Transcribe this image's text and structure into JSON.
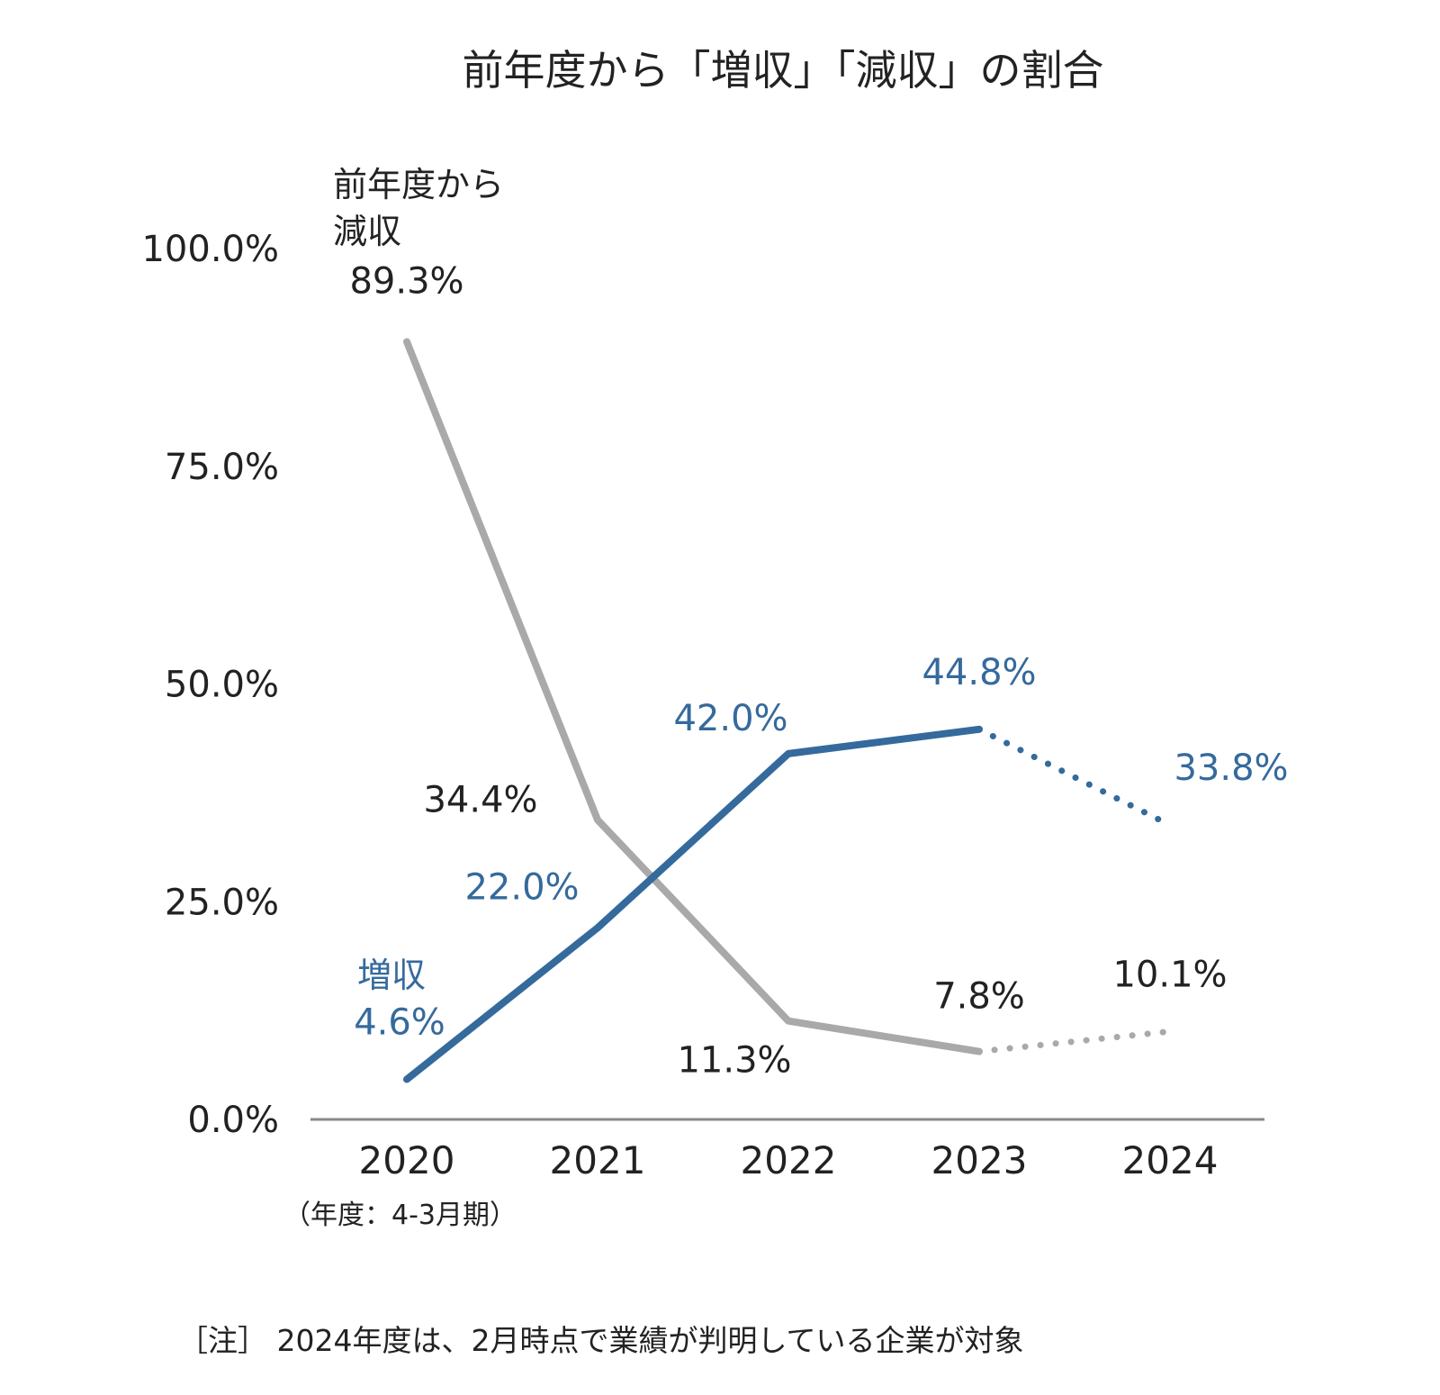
{
  "colors": {
    "increase": "#356a9c",
    "decrease": "#a9a9a9",
    "axis": "#888888",
    "text": "#222222"
  },
  "chart_data": {
    "type": "line",
    "title": "前年度から「増収」「減収」の割合",
    "x_label": "（年度：4-3月期）",
    "categories": [
      "2020",
      "2021",
      "2022",
      "2023",
      "2024"
    ],
    "y_ticks": [
      "0.0%",
      "25.0%",
      "50.0%",
      "75.0%",
      "100.0%"
    ],
    "ylim": [
      0,
      100
    ],
    "grid": false,
    "series": [
      {
        "key": "decrease",
        "name_line1": "前年度から",
        "name_line2": "減収",
        "values": [
          89.3,
          34.4,
          11.3,
          7.8,
          10.1
        ],
        "labels": [
          "89.3%",
          "34.4%",
          "11.3%",
          "7.8%",
          "10.1%"
        ],
        "dotted_from_index": 3
      },
      {
        "key": "increase",
        "name": "増収",
        "values": [
          4.6,
          22.0,
          42.0,
          44.8,
          33.8
        ],
        "labels": [
          "4.6%",
          "22.0%",
          "42.0%",
          "44.8%",
          "33.8%"
        ],
        "dotted_from_index": 3
      }
    ],
    "note": "［注］ 2024年度は、2月時点で業績が判明している企業が対象"
  }
}
